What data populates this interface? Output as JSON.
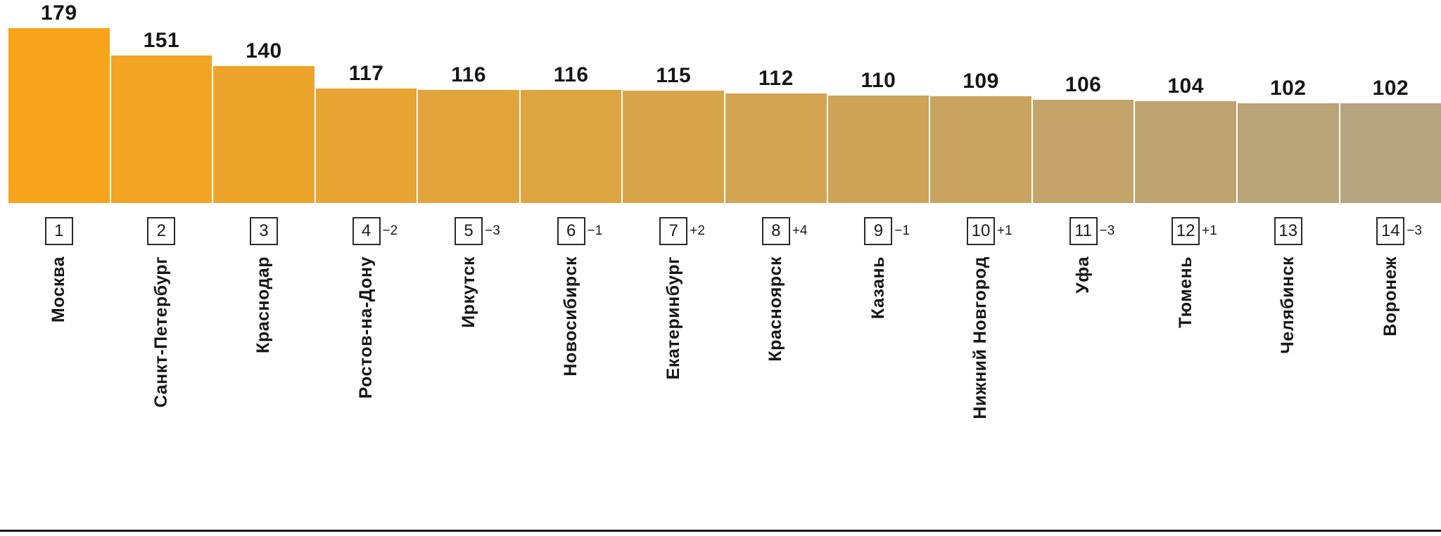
{
  "chart_data": {
    "type": "bar",
    "title": "",
    "xlabel": "",
    "ylabel": "",
    "legend": false,
    "grid": false,
    "ylim": [
      0,
      179
    ],
    "categories": [
      "Москва",
      "Санкт-Петербург",
      "Краснодар",
      "Ростов-на-Дону",
      "Иркутск",
      "Новосибирск",
      "Екатеринбург",
      "Красноярск",
      "Казань",
      "Нижний Новгород",
      "Уфа",
      "Тюмень",
      "Челябинск",
      "Воронеж"
    ],
    "values": [
      179,
      151,
      140,
      117,
      116,
      116,
      115,
      112,
      110,
      109,
      106,
      104,
      102,
      102
    ],
    "ranks": [
      1,
      2,
      3,
      4,
      5,
      6,
      7,
      8,
      9,
      10,
      11,
      12,
      13,
      14
    ],
    "rank_changes": [
      "",
      "",
      "",
      "−2",
      "−3",
      "−1",
      "+2",
      "+4",
      "−1",
      "+1",
      "−3",
      "+1",
      "",
      "−3"
    ],
    "colors": {
      "bar_start": "#F7A41B",
      "bar_end": "#B4A480",
      "value_label": "#161616",
      "rank_box_border": "#2A2A2A",
      "baseline": "#1A1A1A"
    }
  }
}
